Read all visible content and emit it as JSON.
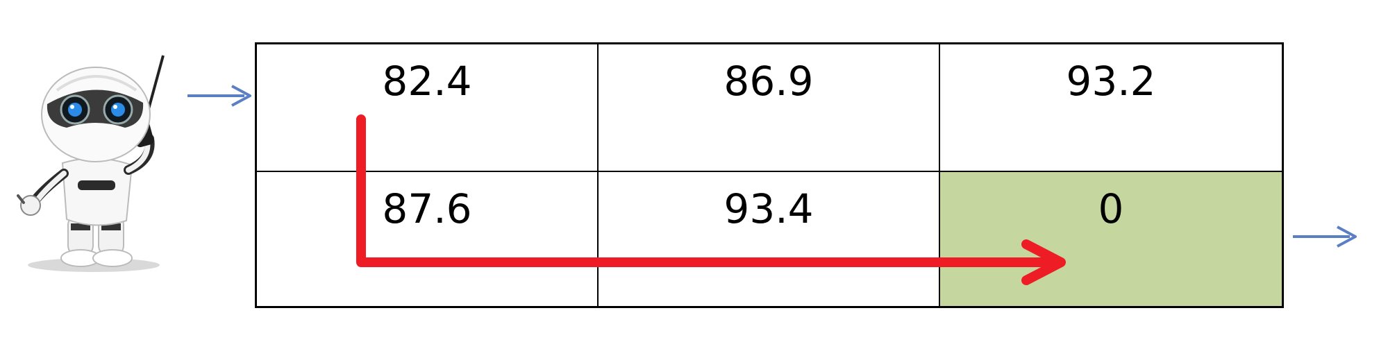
{
  "grid": {
    "rows": [
      [
        {
          "value": "82.4"
        },
        {
          "value": "86.9"
        },
        {
          "value": "93.2"
        }
      ],
      [
        {
          "value": "87.6"
        },
        {
          "value": "93.4"
        },
        {
          "value": "0"
        }
      ]
    ],
    "goal_cell": {
      "row": 1,
      "col": 2
    }
  },
  "colors": {
    "goal_fill": "#c5d79e",
    "path_arrow": "#ee1c25",
    "flow_arrow": "#5b7fc4",
    "grid_line": "#000000"
  },
  "icons": {
    "agent": "robot-icon",
    "input": "arrow-right-icon",
    "output": "arrow-right-icon",
    "path": "path-arrow-icon"
  }
}
